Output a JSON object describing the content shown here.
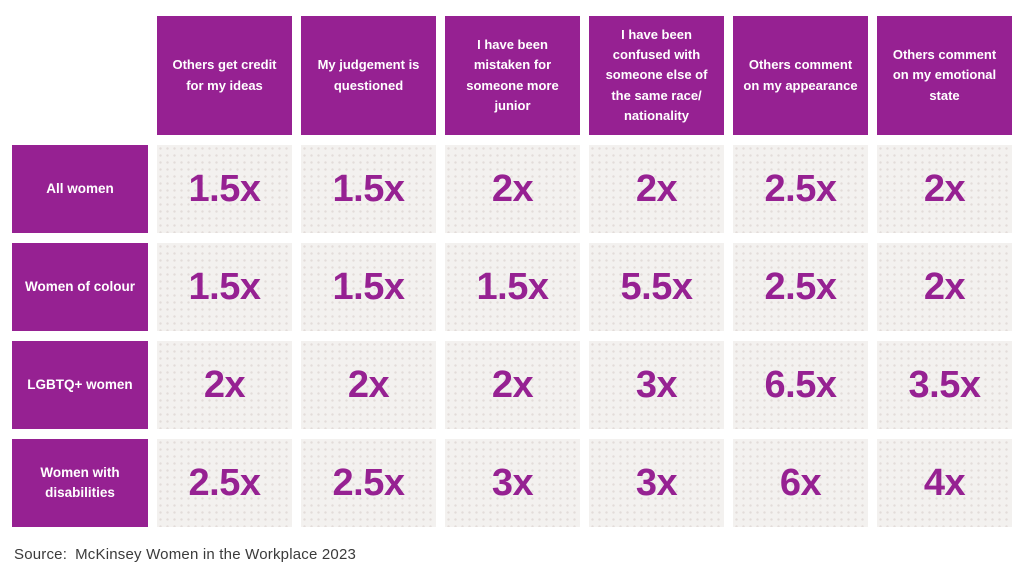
{
  "accent_color": "#962192",
  "cell_background": "#f3f1ef",
  "table": {
    "columns": [
      {
        "label": "Others get credit for my ideas"
      },
      {
        "label": "My judgement is questioned"
      },
      {
        "label": "I have been mistaken for someone more junior"
      },
      {
        "label": "I have been confused with someone else of the same race/ nationality"
      },
      {
        "label": "Others comment on my appearance"
      },
      {
        "label": "Others comment on my emotional state"
      }
    ],
    "rows": [
      {
        "label": "All women",
        "values": [
          "1.5x",
          "1.5x",
          "2x",
          "2x",
          "2.5x",
          "2x"
        ]
      },
      {
        "label": "Women of colour",
        "values": [
          "1.5x",
          "1.5x",
          "1.5x",
          "5.5x",
          "2.5x",
          "2x"
        ]
      },
      {
        "label": "LGBTQ+ women",
        "values": [
          "2x",
          "2x",
          "2x",
          "3x",
          "6.5x",
          "3.5x"
        ]
      },
      {
        "label": "Women with disabilities",
        "values": [
          "2.5x",
          "2.5x",
          "3x",
          "3x",
          "6x",
          "4x"
        ]
      }
    ]
  },
  "source": {
    "label": "Source:",
    "text": "McKinsey Women in the Workplace 2023"
  },
  "chart_data": {
    "type": "table",
    "title": "",
    "categories": [
      "Others get credit for my ideas",
      "My judgement is questioned",
      "I have been mistaken for someone more junior",
      "I have been confused with someone else of the same race/nationality",
      "Others comment on my appearance",
      "Others comment on my emotional state"
    ],
    "unit": "x",
    "series": [
      {
        "name": "All women",
        "values": [
          1.5,
          1.5,
          2,
          2,
          2.5,
          2
        ]
      },
      {
        "name": "Women of colour",
        "values": [
          1.5,
          1.5,
          1.5,
          5.5,
          2.5,
          2
        ]
      },
      {
        "name": "LGBTQ+ women",
        "values": [
          2,
          2,
          2,
          3,
          6.5,
          3.5
        ]
      },
      {
        "name": "Women with disabilities",
        "values": [
          2.5,
          2.5,
          3,
          3,
          6,
          4
        ]
      }
    ],
    "annotations": [
      "Source:  McKinsey Women in the Workplace 2023"
    ]
  }
}
